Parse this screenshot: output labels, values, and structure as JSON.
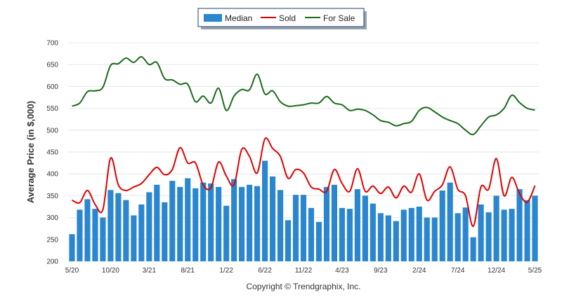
{
  "chart_data": {
    "type": "bar",
    "ylabel": "Average Price (in $,000)",
    "ylim": [
      200,
      700
    ],
    "yticks": [
      "200",
      "250",
      "300",
      "350",
      "400",
      "450",
      "500",
      "550",
      "600",
      "650",
      "700"
    ],
    "x_tick_labels": [
      {
        "index": 0,
        "label": "5/20"
      },
      {
        "index": 5,
        "label": "10/20"
      },
      {
        "index": 10,
        "label": "3/21"
      },
      {
        "index": 15,
        "label": "8/21"
      },
      {
        "index": 20,
        "label": "1/22"
      },
      {
        "index": 25,
        "label": "6/22"
      },
      {
        "index": 30,
        "label": "11/22"
      },
      {
        "index": 35,
        "label": "4/23"
      },
      {
        "index": 40,
        "label": "9/23"
      },
      {
        "index": 45,
        "label": "2/24"
      },
      {
        "index": 50,
        "label": "7/24"
      },
      {
        "index": 55,
        "label": "12/24"
      },
      {
        "index": 60,
        "label": "5/25"
      }
    ],
    "grid": true,
    "legend_position": "top-center",
    "legend": [
      "Median",
      "Sold",
      "For Sale"
    ],
    "series": [
      {
        "name": "Median",
        "type": "bar",
        "color": "#2a86cf",
        "values": [
          262,
          318,
          342,
          320,
          300,
          363,
          356,
          340,
          305,
          330,
          358,
          375,
          335,
          384,
          370,
          390,
          367,
          380,
          378,
          370,
          327,
          388,
          370,
          375,
          372,
          430,
          394,
          363,
          294,
          352,
          352,
          322,
          290,
          370,
          375,
          322,
          320,
          365,
          350,
          332,
          310,
          305,
          292,
          318,
          322,
          325,
          300,
          300,
          362,
          380,
          310,
          323,
          255,
          330,
          312,
          350,
          318,
          320,
          365,
          340,
          350
        ]
      },
      {
        "name": "Sold",
        "type": "line",
        "color": "#e00000",
        "values": [
          340,
          334,
          362,
          330,
          318,
          436,
          375,
          362,
          370,
          378,
          398,
          415,
          398,
          410,
          460,
          425,
          425,
          375,
          368,
          427,
          395,
          375,
          456,
          440,
          402,
          480,
          458,
          440,
          390,
          410,
          402,
          370,
          365,
          360,
          410,
          378,
          360,
          412,
          360,
          372,
          355,
          370,
          345,
          372,
          358,
          400,
          340,
          360,
          375,
          416,
          365,
          350,
          280,
          370,
          365,
          435,
          350,
          392,
          355,
          335,
          373
        ]
      },
      {
        "name": "For Sale",
        "type": "line",
        "color": "#1a6b1a",
        "values": [
          555,
          562,
          588,
          590,
          598,
          648,
          652,
          665,
          655,
          668,
          650,
          655,
          618,
          615,
          605,
          605,
          565,
          578,
          562,
          596,
          545,
          578,
          593,
          592,
          628,
          583,
          590,
          565,
          555,
          556,
          558,
          562,
          562,
          577,
          562,
          558,
          545,
          548,
          545,
          535,
          522,
          518,
          510,
          515,
          520,
          545,
          552,
          542,
          530,
          522,
          515,
          500,
          490,
          510,
          530,
          535,
          550,
          580,
          563,
          550,
          546
        ]
      }
    ]
  },
  "copyright": "Copyright © Trendgraphix, Inc."
}
